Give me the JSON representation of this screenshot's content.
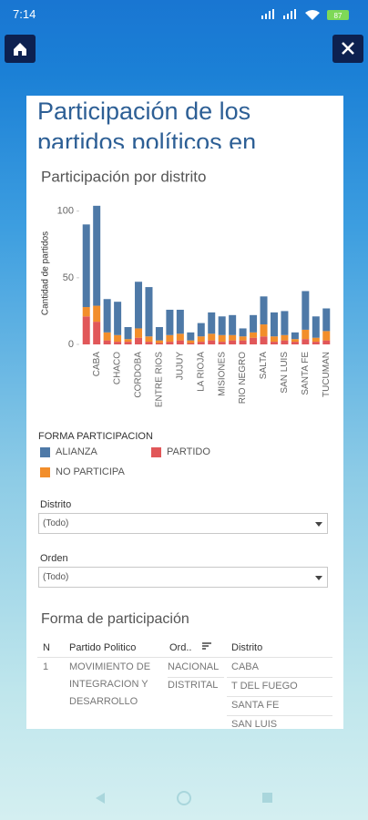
{
  "status_bar": {
    "time": "7:14",
    "battery": "87"
  },
  "title": "Participación de los partidos políticos en",
  "chart_data": {
    "type": "bar",
    "stacked": true,
    "title": "Participación por distrito",
    "y_label": "Cantidad de partidos",
    "legend_title": "FORMA PARTICIPACION",
    "categories": [
      null,
      "CABA",
      null,
      "CHACO",
      null,
      "CORDOBA",
      null,
      "ENTRE RIOS",
      null,
      "JUJUY",
      null,
      "LA RIOJA",
      null,
      "MISIONES",
      null,
      "RIO NEGRO",
      null,
      "SALTA",
      null,
      "SAN LUIS",
      null,
      "SANTA FE",
      null,
      "TUCUMAN"
    ],
    "series": [
      {
        "name": "ALIANZA",
        "color": "#4e79a7",
        "values": [
          62,
          75,
          25,
          25,
          9,
          35,
          37,
          10,
          19,
          18,
          6,
          10,
          16,
          14,
          15,
          6,
          13,
          21,
          18,
          18,
          5,
          29,
          16,
          17
        ]
      },
      {
        "name": "NO PARTICIPA",
        "color": "#f28e2b",
        "values": [
          7,
          12,
          6,
          5,
          2,
          7,
          4,
          2,
          5,
          5,
          2,
          4,
          5,
          5,
          4,
          3,
          4,
          9,
          4,
          4,
          2,
          7,
          3,
          7
        ]
      },
      {
        "name": "PARTIDO",
        "color": "#e15759",
        "values": [
          21,
          17,
          3,
          2,
          2,
          5,
          2,
          1,
          2,
          3,
          1,
          2,
          3,
          2,
          3,
          3,
          5,
          6,
          2,
          3,
          2,
          4,
          2,
          3
        ]
      }
    ],
    "ylim": [
      0,
      108
    ],
    "yticks": [
      0,
      50,
      100
    ]
  },
  "filters": [
    {
      "label": "Distrito",
      "value": "(Todo)"
    },
    {
      "label": "Orden",
      "value": "(Todo)"
    }
  ],
  "table": {
    "title": "Forma de participación",
    "columns": [
      "N",
      "Partido Politico",
      "Ord..",
      "Distrito"
    ],
    "row": {
      "n": "1",
      "partido": "MOVIMIENTO DE INTEGRACION Y DESARROLLO",
      "orden": [
        "NACIONAL",
        "DISTRITAL"
      ],
      "distritos": [
        "CABA",
        "T DEL FUEGO",
        "SANTA FE",
        "SAN LUIS"
      ]
    }
  }
}
